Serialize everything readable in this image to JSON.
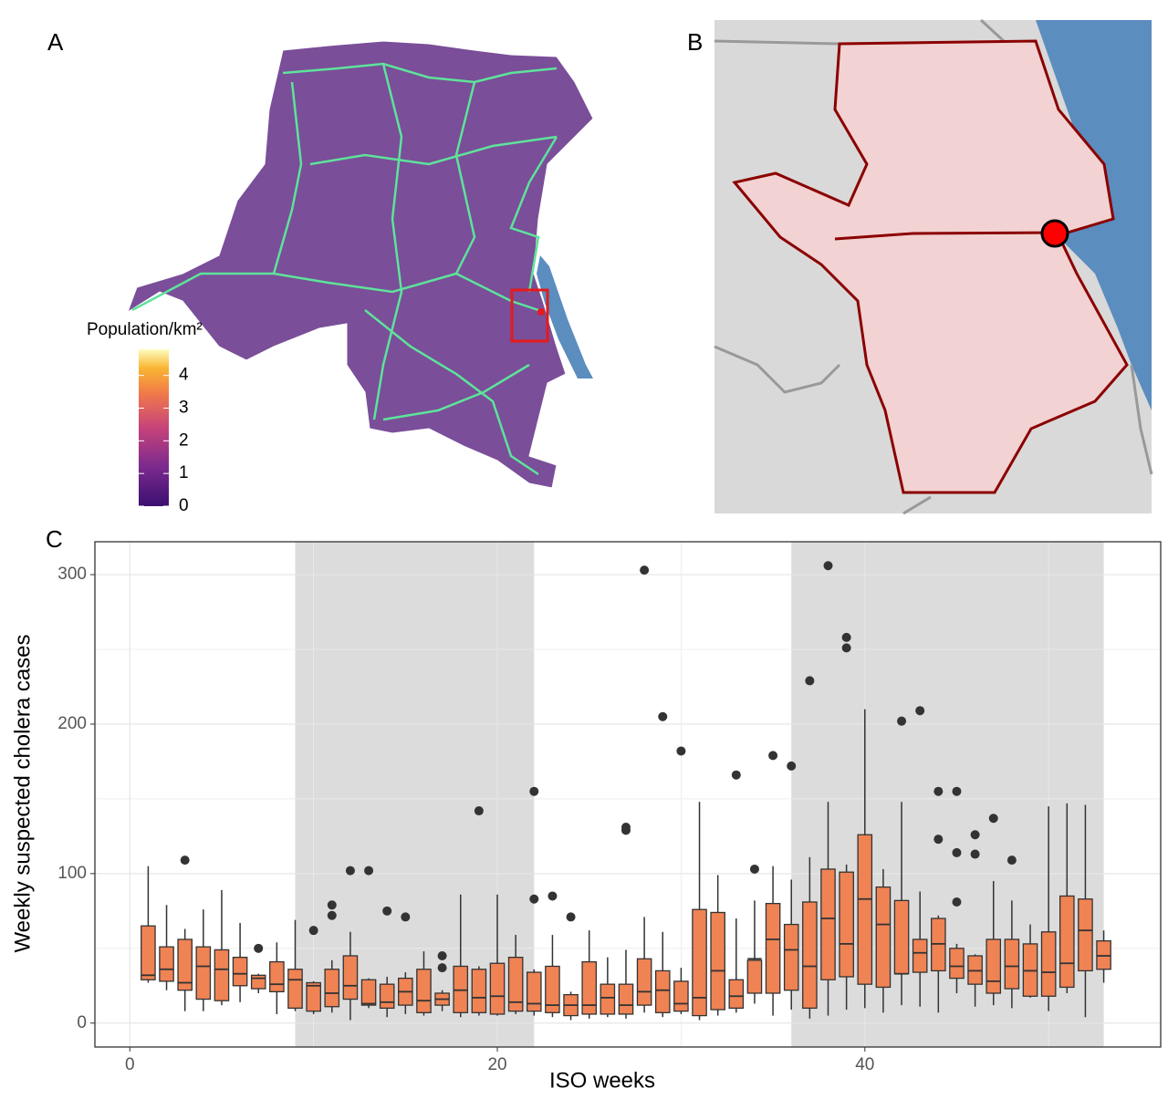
{
  "panels": [
    "A",
    "B",
    "C"
  ],
  "map_legend": {
    "title": "Population/km²",
    "lim": [
      0,
      4.8
    ],
    "ticks": [
      0,
      1,
      2,
      3,
      4
    ]
  },
  "chart_data": {
    "type": "boxplot",
    "xlabel": "ISO weeks",
    "ylabel": "Weekly suspected cholera cases",
    "color": "#ef8354",
    "shaded": [
      [
        9,
        22
      ],
      [
        36,
        53
      ]
    ],
    "xlim": [
      -1.9,
      56.1
    ],
    "ylim": [
      -16,
      322
    ],
    "xticks": [
      0,
      20,
      40
    ],
    "yticks": [
      0,
      100,
      200,
      300
    ],
    "grid": true,
    "x": [
      1,
      2,
      3,
      4,
      5,
      6,
      7,
      8,
      9,
      10,
      11,
      12,
      13,
      14,
      15,
      16,
      17,
      18,
      19,
      20,
      21,
      22,
      23,
      24,
      25,
      26,
      27,
      28,
      29,
      30,
      31,
      32,
      33,
      34,
      35,
      36,
      37,
      38,
      39,
      40,
      41,
      42,
      43,
      44,
      45,
      46,
      47,
      48,
      49,
      50,
      51,
      52,
      53
    ],
    "low": [
      27,
      22,
      8,
      8,
      12,
      14,
      20,
      6,
      8,
      6,
      7,
      2,
      10,
      4,
      6,
      5,
      8,
      4,
      5,
      5,
      6,
      5,
      4,
      2,
      3,
      4,
      3,
      7,
      4,
      6,
      2,
      5,
      7,
      13,
      5,
      9,
      3,
      5,
      9,
      10,
      7,
      12,
      11,
      7,
      20,
      11,
      12,
      10,
      17,
      8,
      20,
      4,
      27
    ],
    "q1": [
      29,
      28,
      22,
      16,
      15,
      25,
      23,
      21,
      10,
      8,
      11,
      16,
      12,
      10,
      12,
      7,
      12,
      7,
      7,
      6,
      8,
      8,
      7,
      5,
      6,
      6,
      6,
      12,
      7,
      8,
      5,
      9,
      10,
      20,
      20,
      22,
      10,
      29,
      31,
      26,
      24,
      33,
      34,
      35,
      30,
      26,
      20,
      23,
      18,
      18,
      24,
      35,
      36
    ],
    "median": [
      32,
      36,
      27,
      38,
      36,
      33,
      30,
      26,
      29,
      25,
      20,
      25,
      13,
      14,
      21,
      15,
      16,
      22,
      17,
      18,
      14,
      13,
      12,
      12,
      12,
      17,
      12,
      21,
      22,
      13,
      17,
      35,
      18,
      43,
      56,
      49,
      38,
      70,
      53,
      83,
      66,
      33,
      47,
      53,
      38,
      35,
      28,
      38,
      35,
      34,
      40,
      62,
      45
    ],
    "q3": [
      65,
      51,
      56,
      51,
      49,
      44,
      32,
      41,
      36,
      27,
      36,
      45,
      29,
      26,
      30,
      36,
      20,
      38,
      36,
      40,
      44,
      34,
      38,
      19,
      41,
      26,
      26,
      43,
      35,
      28,
      76,
      74,
      29,
      42,
      80,
      66,
      81,
      103,
      101,
      126,
      91,
      82,
      56,
      70,
      50,
      45,
      56,
      56,
      53,
      61,
      85,
      83,
      55
    ],
    "high": [
      105,
      79,
      63,
      76,
      89,
      67,
      33,
      54,
      69,
      28,
      42,
      61,
      30,
      31,
      34,
      48,
      22,
      86,
      38,
      86,
      59,
      36,
      59,
      21,
      62,
      44,
      49,
      71,
      61,
      37,
      148,
      99,
      70,
      82,
      105,
      96,
      111,
      148,
      106,
      210,
      103,
      148,
      88,
      72,
      53,
      46,
      95,
      82,
      66,
      145,
      147,
      146,
      62
    ],
    "outliers": [
      [],
      [],
      [
        109
      ],
      [],
      [],
      [],
      [
        50
      ],
      [],
      [],
      [
        62
      ],
      [
        72,
        79
      ],
      [
        102
      ],
      [
        102
      ],
      [
        75
      ],
      [
        71
      ],
      [],
      [
        37,
        45
      ],
      [],
      [
        142
      ],
      [],
      [],
      [
        83,
        155
      ],
      [
        85
      ],
      [
        71
      ],
      [],
      [],
      [
        129,
        131
      ],
      [
        303
      ],
      [
        205
      ],
      [
        182
      ],
      [],
      [],
      [
        166
      ],
      [
        103
      ],
      [
        179
      ],
      [
        172
      ],
      [
        229
      ],
      [
        306
      ],
      [
        251,
        258
      ],
      [],
      [],
      [
        202
      ],
      [
        209
      ],
      [
        123,
        155
      ],
      [
        81,
        114,
        155
      ],
      [
        113,
        126
      ],
      [
        137
      ],
      [
        109
      ],
      [],
      [],
      [],
      [],
      []
    ]
  }
}
